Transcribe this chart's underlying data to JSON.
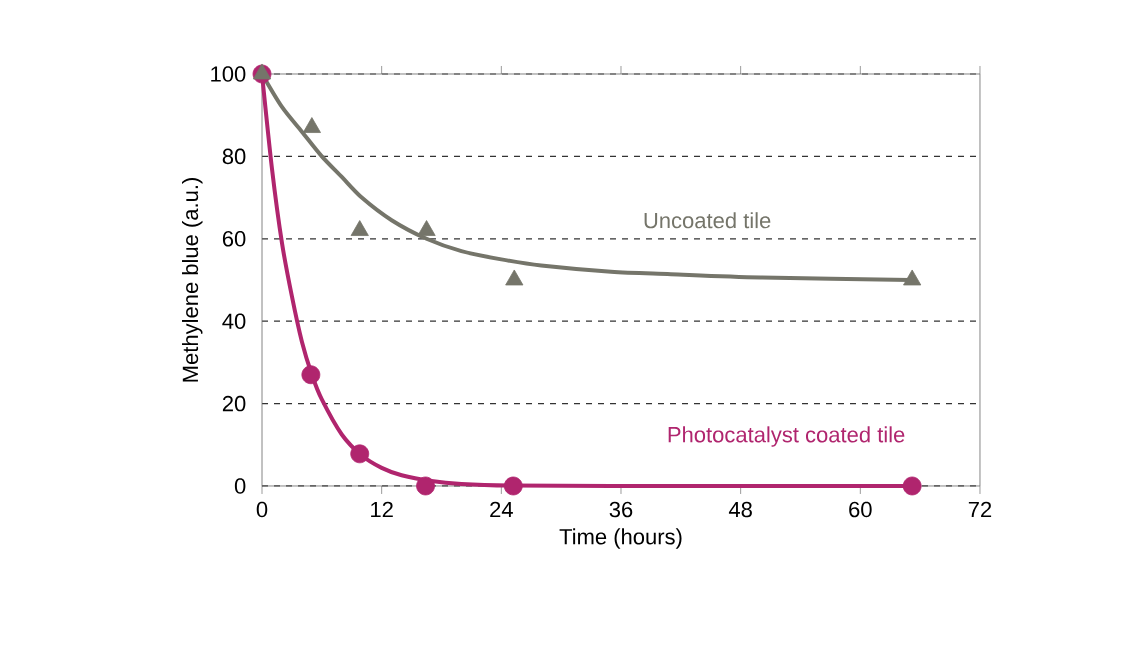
{
  "chart_data": {
    "type": "scatter",
    "xlabel": "Time (hours)",
    "ylabel": "Methylene blue (a.u.)",
    "xlim": [
      0,
      72
    ],
    "xticks": [
      0,
      12,
      24,
      36,
      48,
      60,
      72
    ],
    "ylim": [
      0,
      100
    ],
    "yticks": [
      0,
      20,
      40,
      60,
      80,
      100
    ],
    "grid": "y",
    "series": [
      {
        "type": "line",
        "color": "#75756a",
        "marker": "none",
        "x": [
          0,
          2,
          4,
          6,
          8,
          10,
          13,
          16.5,
          20,
          24,
          28,
          35,
          41,
          50,
          65
        ],
        "values": [
          100,
          92,
          86,
          80,
          75,
          70,
          64.5,
          60,
          57,
          55,
          53.5,
          52,
          51.4,
          50.6,
          50
        ]
      },
      {
        "type": "line",
        "color": "#b0256e",
        "marker": "none",
        "x": [
          0,
          1,
          2,
          3,
          4,
          5,
          6,
          8,
          10,
          12,
          14,
          17,
          20,
          25,
          35,
          65
        ],
        "values": [
          100,
          77,
          59,
          46,
          35,
          27,
          21,
          12.5,
          7.4,
          4.4,
          2.6,
          1.2,
          0.5,
          0.1,
          0,
          0
        ]
      },
      {
        "color": "#b0256e",
        "marker": "circle",
        "x": [
          0,
          4.9,
          9.8,
          16.4,
          25.2,
          65.2
        ],
        "values": [
          100,
          27,
          7.8,
          0,
          0,
          0
        ]
      },
      {
        "color": "#75756a",
        "marker": "triangle",
        "x": [
          0,
          5,
          9.8,
          16.5,
          25.3,
          65.2
        ],
        "values": [
          100,
          87,
          62,
          62,
          50,
          50
        ]
      }
    ],
    "annotations": [
      "Uncoated tile",
      "Photocatalyst coated tile"
    ]
  }
}
